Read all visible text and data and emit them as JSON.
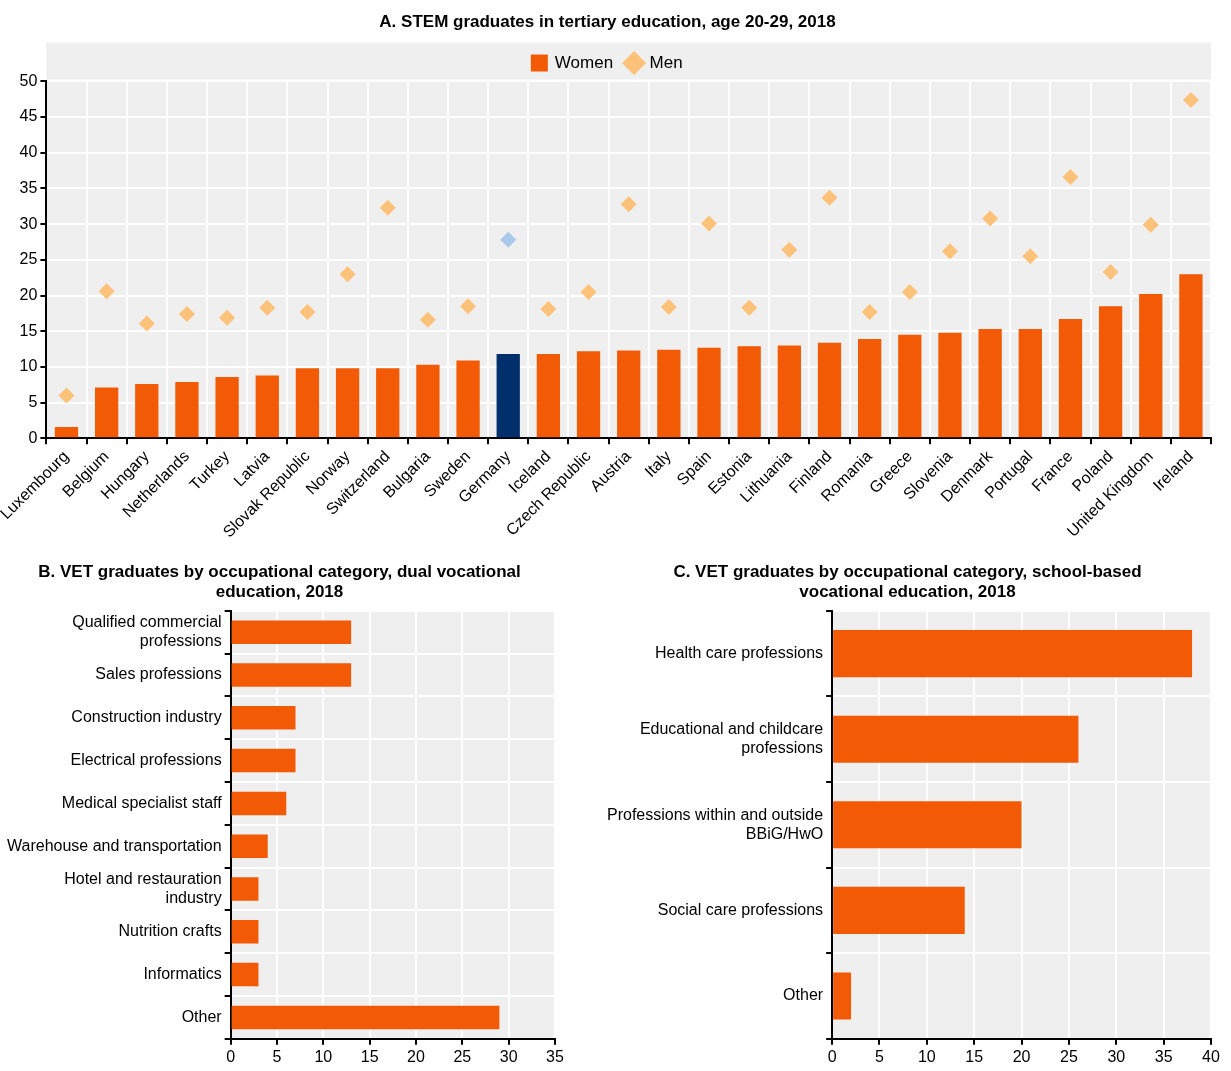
{
  "chart_data": [
    {
      "type": "bar",
      "title": "A. STEM graduates in tertiary education, age 20-29, 2018",
      "categories": [
        "Luxembourg",
        "Belgium",
        "Hungary",
        "Netherlands",
        "Turkey",
        "Latvia",
        "Slovak Republic",
        "Norway",
        "Switzerland",
        "Bulgaria",
        "Sweden",
        "Germany",
        "Iceland",
        "Czech Republic",
        "Austria",
        "Italy",
        "Spain",
        "Estonia",
        "Lithuania",
        "Finland",
        "Romania",
        "Greece",
        "Slovenia",
        "Denmark",
        "Portugal",
        "France",
        "Poland",
        "United Kingdom",
        "Ireland"
      ],
      "series": [
        {
          "name": "Women",
          "type": "bar",
          "color": "#f35a05",
          "colors": [
            "#f35a05",
            "#f35a05",
            "#f35a05",
            "#f35a05",
            "#f35a05",
            "#f35a05",
            "#f35a05",
            "#f35a05",
            "#f35a05",
            "#f35a05",
            "#f35a05",
            "#002f6c",
            "#f35a05",
            "#f35a05",
            "#f35a05",
            "#f35a05",
            "#f35a05",
            "#f35a05",
            "#f35a05",
            "#f35a05",
            "#f35a05",
            "#f35a05",
            "#f35a05",
            "#f35a05",
            "#f35a05",
            "#f35a05",
            "#f35a05",
            "#f35a05",
            "#f35a05"
          ],
          "values": [
            1.6,
            7.1,
            7.6,
            7.9,
            8.6,
            8.8,
            9.8,
            9.8,
            9.8,
            10.3,
            10.9,
            11.8,
            11.8,
            12.2,
            12.3,
            12.4,
            12.7,
            12.9,
            13.0,
            13.4,
            13.9,
            14.5,
            14.8,
            15.3,
            15.3,
            16.7,
            18.5,
            20.2,
            23.0
          ]
        },
        {
          "name": "Men",
          "type": "scatter",
          "marker": "diamond",
          "color": "#fdc27a",
          "colors": [
            "#fdc27a",
            "#fdc27a",
            "#fdc27a",
            "#fdc27a",
            "#fdc27a",
            "#fdc27a",
            "#fdc27a",
            "#fdc27a",
            "#fdc27a",
            "#fdc27a",
            "#fdc27a",
            "#a9c9ea",
            "#fdc27a",
            "#fdc27a",
            "#fdc27a",
            "#fdc27a",
            "#fdc27a",
            "#fdc27a",
            "#fdc27a",
            "#fdc27a",
            "#fdc27a",
            "#fdc27a",
            "#fdc27a",
            "#fdc27a",
            "#fdc27a",
            "#fdc27a",
            "#fdc27a",
            "#fdc27a",
            "#fdc27a"
          ],
          "values": [
            6.0,
            20.6,
            16.1,
            17.4,
            16.9,
            18.3,
            17.7,
            23.0,
            32.3,
            16.6,
            18.5,
            27.8,
            18.1,
            20.5,
            32.8,
            18.4,
            30.1,
            18.3,
            26.4,
            33.7,
            17.7,
            20.5,
            26.2,
            30.8,
            25.5,
            36.6,
            23.3,
            29.9,
            47.4
          ]
        }
      ],
      "ylim": [
        0,
        50
      ],
      "yticks": [
        0,
        5,
        10,
        15,
        20,
        25,
        30,
        35,
        40,
        45,
        50
      ],
      "grid": true,
      "legend": "top"
    },
    {
      "type": "bar",
      "orientation": "horizontal",
      "title": "B. VET graduates by occupational category, dual vocational education, 2018",
      "categories": [
        "Qualified commercial professions",
        "Sales professions",
        "Construction industry",
        "Electrical professions",
        "Medical specialist staff",
        "Warehouse and transportation",
        "Hotel and restauration industry",
        "Nutrition crafts",
        "Informatics",
        "Other"
      ],
      "color": "#f35a05",
      "values": [
        13,
        13,
        7,
        7,
        6,
        4,
        3,
        3,
        3,
        29
      ],
      "xlim": [
        0,
        35
      ],
      "xticks": [
        0,
        5,
        10,
        15,
        20,
        25,
        30,
        35
      ],
      "grid": true
    },
    {
      "type": "bar",
      "orientation": "horizontal",
      "title": "C. VET graduates by occupational category, school-based vocational education, 2018",
      "categories": [
        "Health care professions",
        "Educational and childcare professions",
        "Professions within and outside BBiG/HwO",
        "Social care professions",
        "Other"
      ],
      "color": "#f35a05",
      "values": [
        38,
        26,
        20,
        14,
        2
      ],
      "xlim": [
        0,
        40
      ],
      "xticks": [
        0,
        5,
        10,
        15,
        20,
        25,
        30,
        35,
        40
      ],
      "grid": true
    }
  ]
}
